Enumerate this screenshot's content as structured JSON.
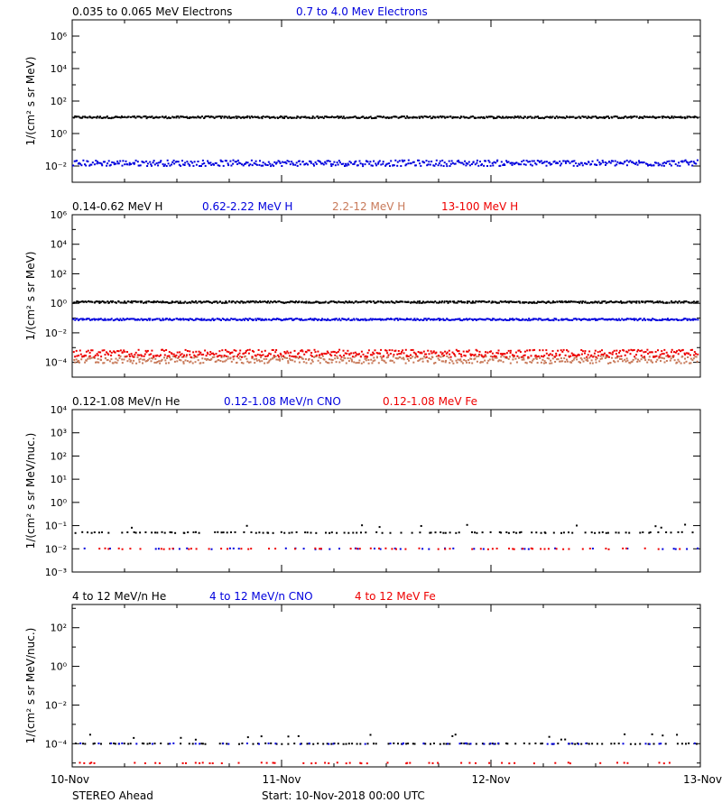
{
  "footer": {
    "left_label": "STEREO Ahead",
    "start_label": "Start: 10-Nov-2018 00:00 UTC"
  },
  "x_axis": {
    "tick_labels": [
      "10-Nov",
      "11-Nov",
      "12-Nov",
      "13-Nov"
    ]
  },
  "colors": {
    "black": "#000000",
    "blue": "#0000dd",
    "red": "#ee0000",
    "salmon": "#c87a5a"
  },
  "chart_data": [
    {
      "type": "scatter",
      "ylabel": "1/(cm² s sr MeV)",
      "log_scale_y": true,
      "ylim_exp": [
        -3,
        7
      ],
      "y_tick_exps": [
        -2,
        0,
        2,
        4,
        6
      ],
      "xlim_days": [
        0,
        3
      ],
      "legend": [
        {
          "name": "0.035 to 0.065 MeV Electrons",
          "color": "#000000"
        },
        {
          "name": "0.7 to 4.0 Mev Electrons",
          "color": "#0000dd"
        }
      ],
      "series": [
        {
          "name": "0.035 to 0.065 MeV Electrons",
          "color": "#000000",
          "typical_value": 10
        },
        {
          "name": "0.7 to 4.0 Mev Electrons",
          "color": "#0000dd",
          "typical_value": 0.015
        }
      ]
    },
    {
      "type": "scatter",
      "ylabel": "1/(cm² s sr MeV)",
      "log_scale_y": true,
      "ylim_exp": [
        -5,
        6
      ],
      "y_tick_exps": [
        -4,
        -2,
        0,
        2,
        4,
        6
      ],
      "xlim_days": [
        0,
        3
      ],
      "legend": [
        {
          "name": "0.14-0.62 MeV H",
          "color": "#000000"
        },
        {
          "name": "0.62-2.22 MeV H",
          "color": "#0000dd"
        },
        {
          "name": "2.2-12 MeV H",
          "color": "#c87a5a"
        },
        {
          "name": "13-100 MeV H",
          "color": "#ee0000"
        }
      ],
      "series": [
        {
          "name": "0.14-0.62 MeV H",
          "color": "#000000",
          "typical_value": 1.2
        },
        {
          "name": "0.62-2.22 MeV H",
          "color": "#0000dd",
          "typical_value": 0.08
        },
        {
          "name": "2.2-12 MeV H",
          "color": "#c87a5a",
          "typical_value": 0.00015
        },
        {
          "name": "13-100 MeV H",
          "color": "#ee0000",
          "typical_value": 0.0004
        }
      ]
    },
    {
      "type": "scatter",
      "ylabel": "1/(cm² s sr MeV/nuc.)",
      "log_scale_y": true,
      "ylim_exp": [
        -3,
        4
      ],
      "y_tick_exps": [
        -3,
        -2,
        -1,
        0,
        1,
        2,
        3,
        4
      ],
      "xlim_days": [
        0,
        3
      ],
      "legend": [
        {
          "name": "0.12-1.08 MeV/n He",
          "color": "#000000"
        },
        {
          "name": "0.12-1.08 MeV/n CNO",
          "color": "#0000dd"
        },
        {
          "name": "0.12-1.08 MeV Fe",
          "color": "#ee0000"
        }
      ],
      "series": [
        {
          "name": "0.12-1.08 MeV/n He",
          "color": "#000000",
          "typical_value": 0.05
        },
        {
          "name": "0.12-1.08 MeV/n CNO",
          "color": "#0000dd",
          "typical_value": 0.01
        },
        {
          "name": "0.12-1.08 MeV Fe",
          "color": "#ee0000",
          "typical_value": 0.01
        }
      ]
    },
    {
      "type": "scatter",
      "ylabel": "1/(cm² s sr MeV/nuc.)",
      "log_scale_y": true,
      "ylim_exp": [
        -5.2,
        3.2
      ],
      "y_tick_exps": [
        -4,
        -2,
        0,
        2
      ],
      "xlim_days": [
        0,
        3
      ],
      "legend": [
        {
          "name": "4 to 12 MeV/n He",
          "color": "#000000"
        },
        {
          "name": "4 to 12 MeV/n CNO",
          "color": "#0000dd"
        },
        {
          "name": "4 to 12 MeV Fe",
          "color": "#ee0000"
        }
      ],
      "series": [
        {
          "name": "4 to 12 MeV/n He",
          "color": "#000000",
          "typical_value": 0.0001
        },
        {
          "name": "4 to 12 MeV/n CNO",
          "color": "#0000dd",
          "typical_value": 0.0001
        },
        {
          "name": "4 to 12 MeV Fe",
          "color": "#ee0000",
          "typical_value": 1e-05
        }
      ]
    }
  ]
}
